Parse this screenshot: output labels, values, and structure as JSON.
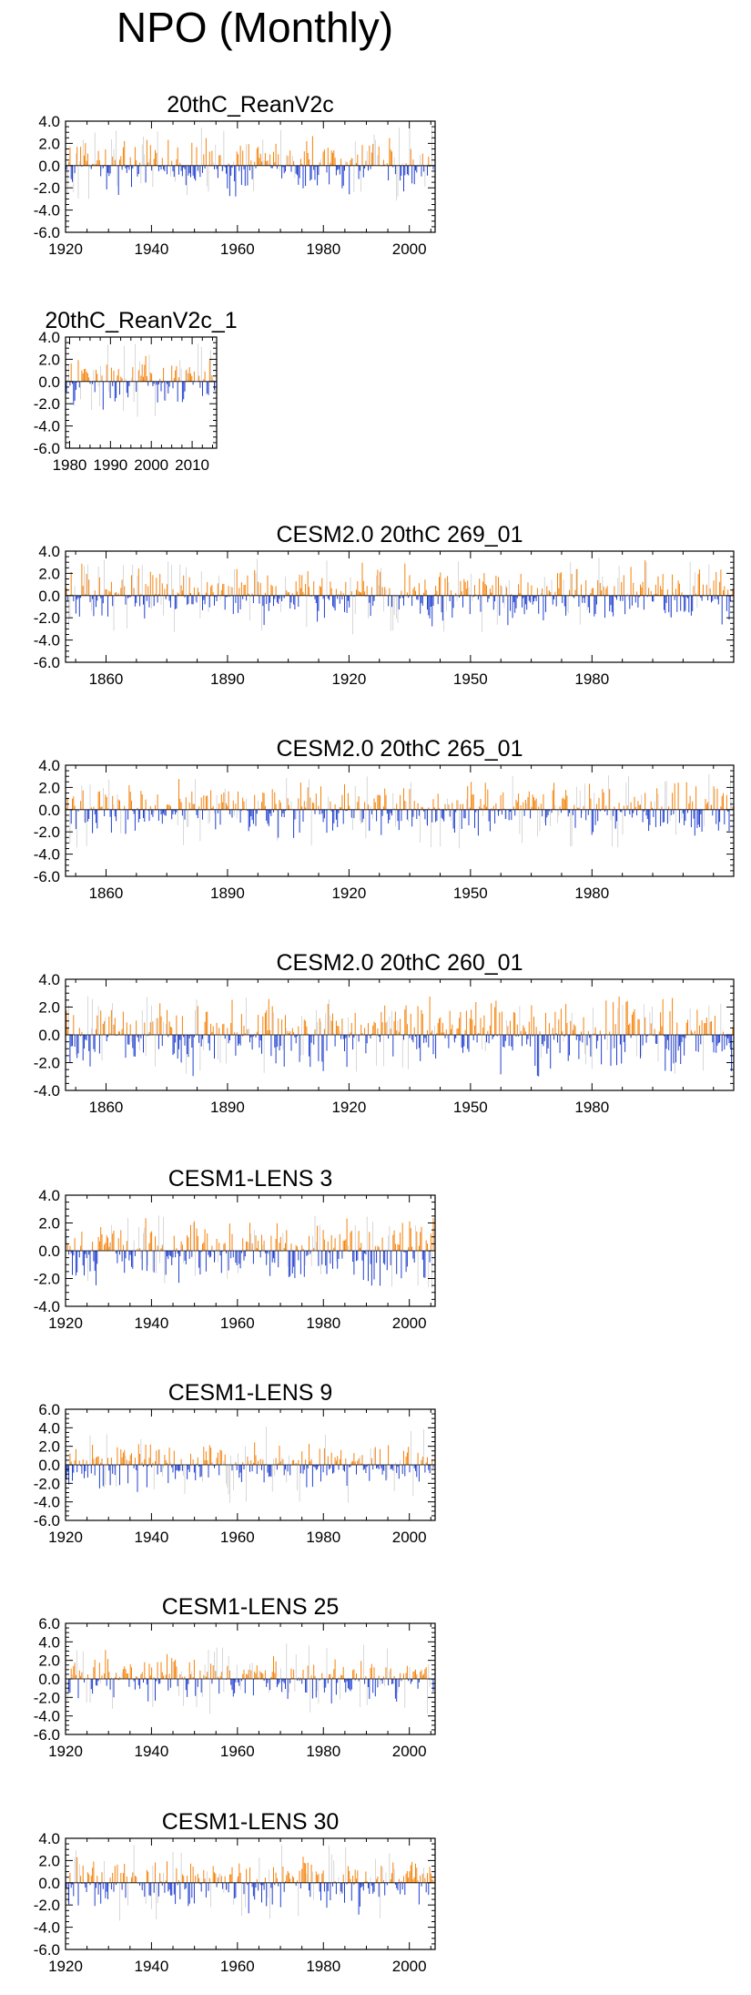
{
  "figure": {
    "title": "NPO (Monthly)"
  },
  "colors": {
    "positive": "#f5820a",
    "negative": "#1f3fd0",
    "faint": "#bdbdbd",
    "axis": "#000000"
  },
  "chart_data": [
    {
      "type": "bar",
      "title": "20thC_ReanV2c",
      "x_range": [
        1920,
        2006
      ],
      "ylim": [
        -6,
        4
      ],
      "yticks": [
        "4.0",
        "2.0",
        "0.0",
        "-2.0",
        "-4.0",
        "-6.0"
      ],
      "xticks": [
        "1920",
        "1940",
        "1960",
        "1980",
        "2000"
      ],
      "legend": "none",
      "grid": false
    },
    {
      "type": "bar",
      "title": "20thC_ReanV2c_1",
      "x_range": [
        1979,
        2016
      ],
      "ylim": [
        -6,
        4
      ],
      "yticks": [
        "4.0",
        "2.0",
        "0.0",
        "-2.0",
        "-4.0",
        "-6.0"
      ],
      "xticks": [
        "1980",
        "1990",
        "2000",
        "2010"
      ],
      "legend": "none",
      "grid": false
    },
    {
      "type": "bar",
      "title": "CESM2.0 20thC 269_01",
      "x_range": [
        1850,
        2015
      ],
      "ylim": [
        -6,
        4
      ],
      "yticks": [
        "4.0",
        "2.0",
        "0.0",
        "-2.0",
        "-4.0",
        "-6.0"
      ],
      "xticks": [
        "1860",
        "1890",
        "1920",
        "1950",
        "1980"
      ],
      "legend": "none",
      "grid": false
    },
    {
      "type": "bar",
      "title": "CESM2.0 20thC 265_01",
      "x_range": [
        1850,
        2015
      ],
      "ylim": [
        -6,
        4
      ],
      "yticks": [
        "4.0",
        "2.0",
        "0.0",
        "-2.0",
        "-4.0",
        "-6.0"
      ],
      "xticks": [
        "1860",
        "1890",
        "1920",
        "1950",
        "1980"
      ],
      "legend": "none",
      "grid": false
    },
    {
      "type": "bar",
      "title": "CESM2.0 20thC 260_01",
      "x_range": [
        1850,
        2015
      ],
      "ylim": [
        -4,
        4
      ],
      "yticks": [
        "4.0",
        "2.0",
        "0.0",
        "-2.0",
        "-4.0"
      ],
      "xticks": [
        "1860",
        "1890",
        "1920",
        "1950",
        "1980"
      ],
      "legend": "none",
      "grid": false
    },
    {
      "type": "bar",
      "title": "CESM1-LENS 3",
      "x_range": [
        1920,
        2006
      ],
      "ylim": [
        -4,
        4
      ],
      "yticks": [
        "4.0",
        "2.0",
        "0.0",
        "-2.0",
        "-4.0"
      ],
      "xticks": [
        "1920",
        "1940",
        "1960",
        "1980",
        "2000"
      ],
      "legend": "none",
      "grid": false
    },
    {
      "type": "bar",
      "title": "CESM1-LENS 9",
      "x_range": [
        1920,
        2006
      ],
      "ylim": [
        -6,
        6
      ],
      "yticks": [
        "6.0",
        "4.0",
        "2.0",
        "0.0",
        "-2.0",
        "-4.0",
        "-6.0"
      ],
      "xticks": [
        "1920",
        "1940",
        "1960",
        "1980",
        "2000"
      ],
      "legend": "none",
      "grid": false
    },
    {
      "type": "bar",
      "title": "CESM1-LENS 25",
      "x_range": [
        1920,
        2006
      ],
      "ylim": [
        -6,
        6
      ],
      "yticks": [
        "6.0",
        "4.0",
        "2.0",
        "0.0",
        "-2.0",
        "-4.0",
        "-6.0"
      ],
      "xticks": [
        "1920",
        "1940",
        "1960",
        "1980",
        "2000"
      ],
      "legend": "none",
      "grid": false
    },
    {
      "type": "bar",
      "title": "CESM1-LENS 30",
      "x_range": [
        1920,
        2006
      ],
      "ylim": [
        -6,
        4
      ],
      "yticks": [
        "4.0",
        "2.0",
        "0.0",
        "-2.0",
        "-4.0",
        "-6.0"
      ],
      "xticks": [
        "1920",
        "1940",
        "1960",
        "1980",
        "2000"
      ],
      "legend": "none",
      "grid": false
    }
  ]
}
